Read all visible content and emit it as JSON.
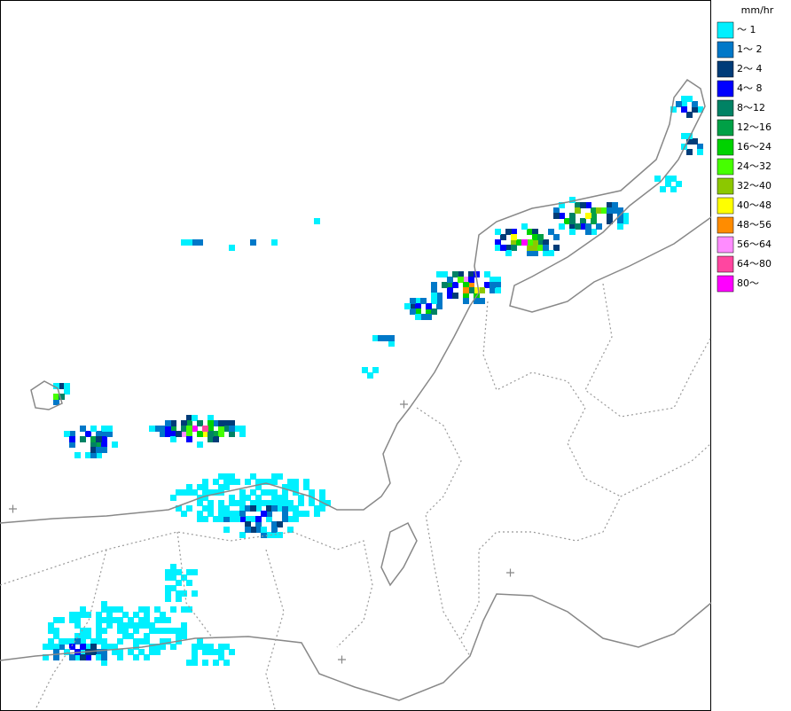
{
  "legend": {
    "unit": "mm/hr",
    "items": [
      {
        "label": "～ 1",
        "color": "#00f0ff"
      },
      {
        "label": "1～ 2",
        "color": "#0078c8"
      },
      {
        "label": "2～ 4",
        "color": "#003c78"
      },
      {
        "label": "4～ 8",
        "color": "#0000ff"
      },
      {
        "label": "8～12",
        "color": "#008264"
      },
      {
        "label": "12～16",
        "color": "#00a046"
      },
      {
        "label": "16～24",
        "color": "#00d200"
      },
      {
        "label": "24～32",
        "color": "#46ff00"
      },
      {
        "label": "32～40",
        "color": "#8cc800"
      },
      {
        "label": "40～48",
        "color": "#ffff00"
      },
      {
        "label": "48～56",
        "color": "#ff8c00"
      },
      {
        "label": "56～64",
        "color": "#ff8cff"
      },
      {
        "label": "64～80",
        "color": "#ff46a0"
      },
      {
        "label": "80～",
        "color": "#ff00ff"
      }
    ]
  }
}
